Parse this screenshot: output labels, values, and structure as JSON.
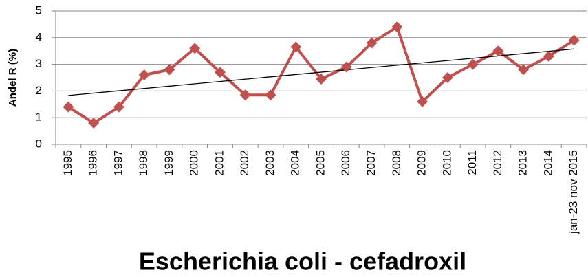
{
  "chart_data": {
    "type": "line",
    "title": "Escherichia coli - cefadroxil",
    "y_label": "Andel R (%)",
    "categories": [
      "1995",
      "1996",
      "1997",
      "1998",
      "1999",
      "2000",
      "2001",
      "2002",
      "2003",
      "2004",
      "2005",
      "2006",
      "2007",
      "2008",
      "2009",
      "2010",
      "2011",
      "2012",
      "2013",
      "2014",
      "jan-23 nov 2015"
    ],
    "series": [
      {
        "name": "Andel R (%)",
        "color": "#c0504d",
        "values": [
          1.4,
          0.8,
          1.4,
          2.6,
          2.8,
          3.6,
          2.7,
          1.85,
          1.85,
          3.65,
          2.45,
          2.9,
          3.8,
          4.4,
          1.6,
          2.5,
          3.0,
          3.5,
          2.8,
          3.3,
          3.9
        ]
      }
    ],
    "ylim": [
      0,
      5
    ],
    "yticks": [
      0,
      1,
      2,
      3,
      4,
      5
    ],
    "grid": true,
    "trendline": true,
    "trendline_color": "#000000"
  }
}
